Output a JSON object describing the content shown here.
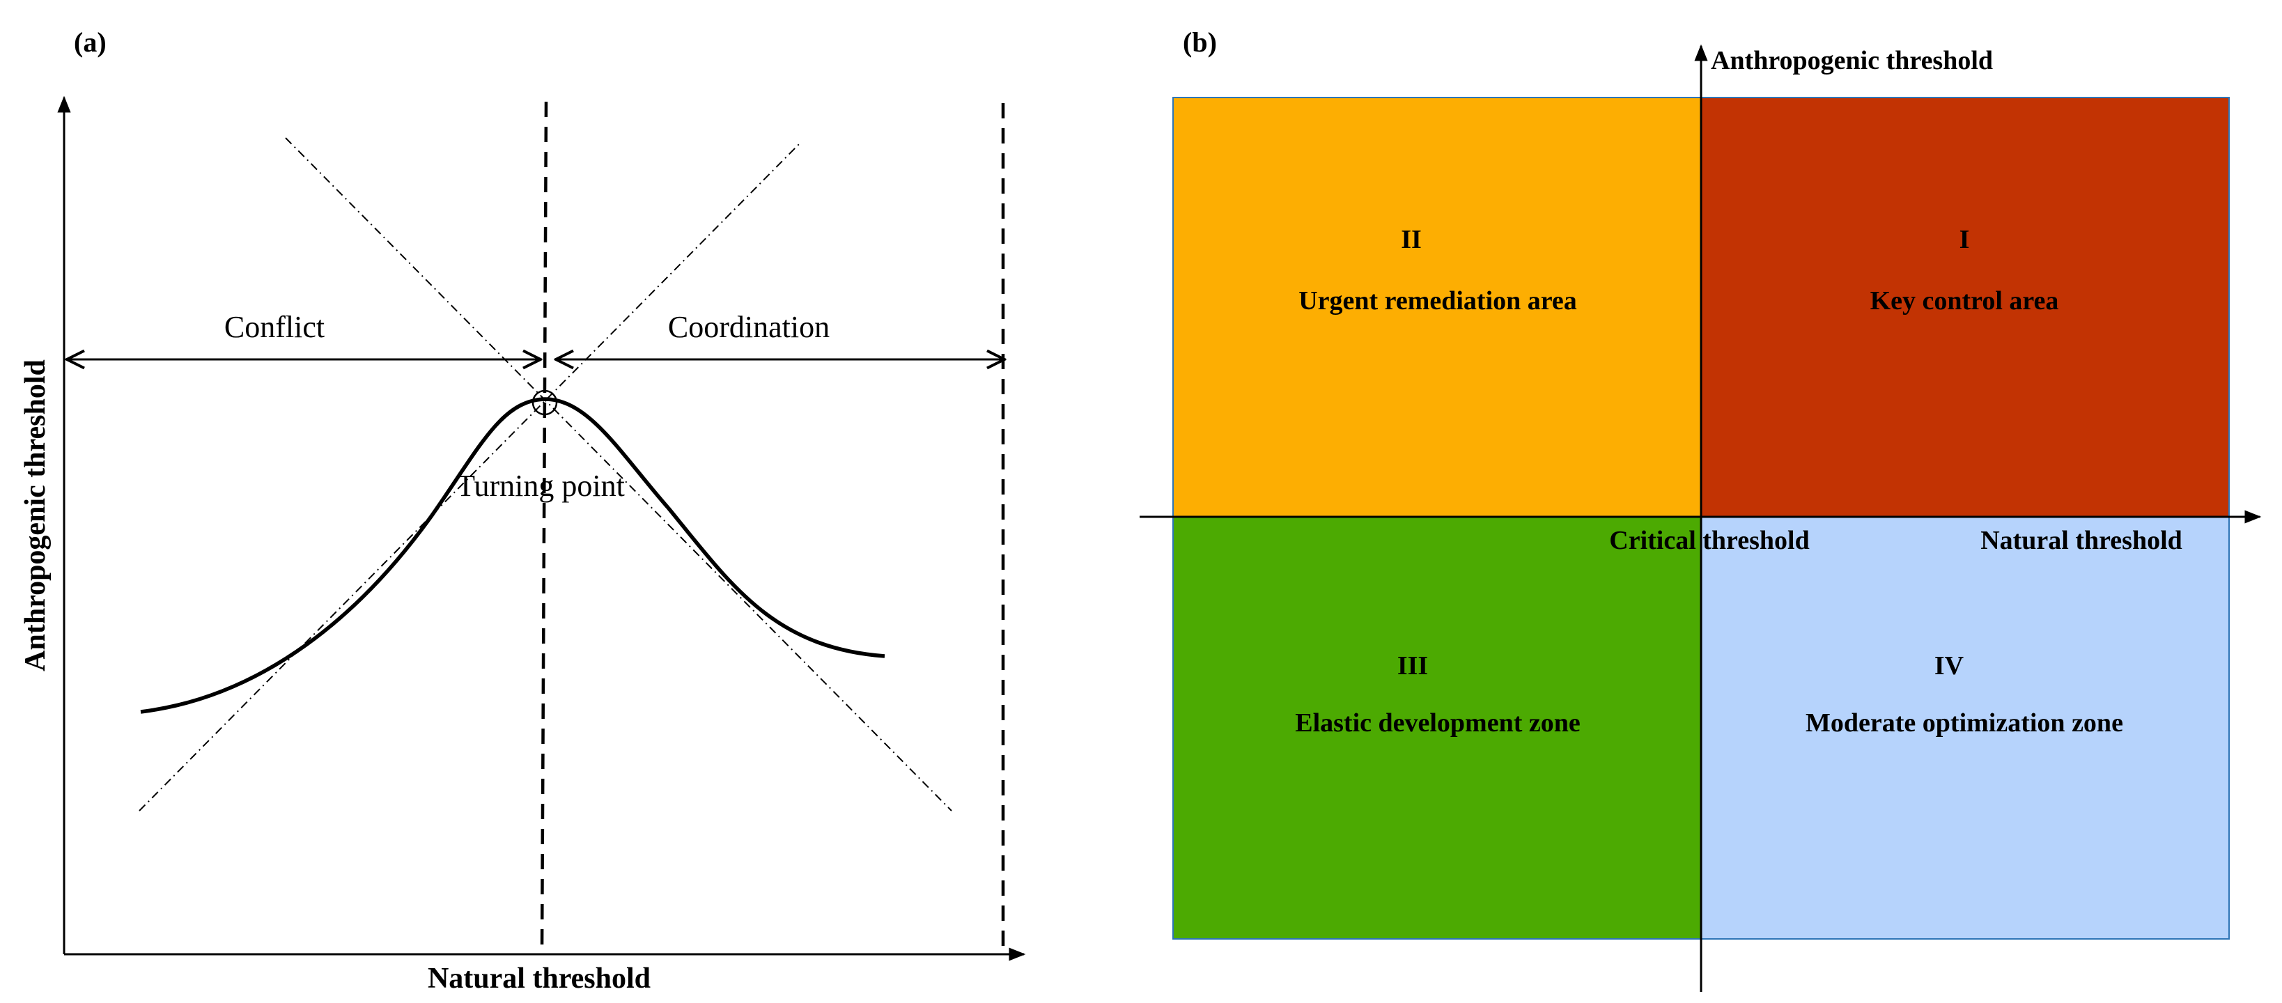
{
  "panel_a": {
    "label": "(a)",
    "x_axis_label": "Natural threshold",
    "y_axis_label": "Anthropogenic threshold",
    "conflict_label": "Conflict",
    "coordination_label": "Coordination",
    "turning_point_label": "Turning point"
  },
  "panel_b": {
    "label": "(b)",
    "y_axis_label": "Anthropogenic threshold",
    "x_axis_label": "Natural threshold",
    "critical_label": "Critical threshold",
    "quadrants": [
      {
        "numeral": "I",
        "name": "Key control area",
        "color": "#c23303"
      },
      {
        "numeral": "II",
        "name": "Urgent remediation area",
        "color": "#fdae02"
      },
      {
        "numeral": "III",
        "name": "Elastic development zone",
        "color": "#4caa02"
      },
      {
        "numeral": "IV",
        "name": "Moderate optimization zone",
        "color": "#b6d3fc"
      }
    ],
    "critical_color": "#e8173c"
  }
}
